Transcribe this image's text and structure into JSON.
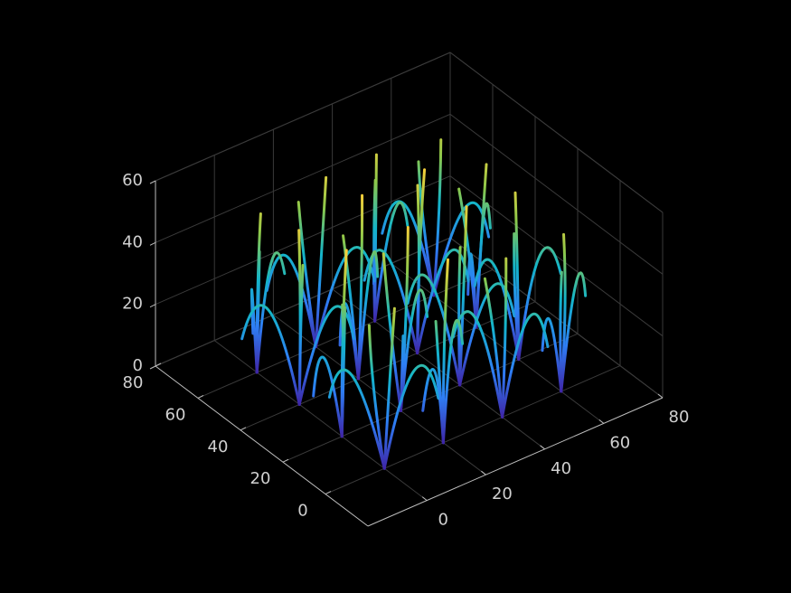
{
  "chart_data": {
    "type": "line3d",
    "xlim": [
      -20,
      80
    ],
    "ylim": [
      -20,
      80
    ],
    "zlim": [
      0,
      60
    ],
    "xticks": [
      0,
      20,
      40,
      60,
      80
    ],
    "yticks": [
      0,
      20,
      40,
      60,
      80
    ],
    "zticks": [
      0,
      20,
      40,
      60
    ],
    "grid": true,
    "colormap": [
      "#3e26a8",
      "#2e7ff5",
      "#14b5c9",
      "#8cc84a",
      "#f9cf3a"
    ],
    "series": [
      {
        "x": [
          0,
          1,
          2
        ],
        "y": [
          0,
          -1,
          -2
        ],
        "z": [
          0,
          27,
          52
        ]
      },
      {
        "x": [
          0,
          -2,
          -3
        ],
        "y": [
          0,
          2,
          3
        ],
        "z": [
          0,
          24,
          46
        ]
      },
      {
        "x": [
          0,
          8,
          14
        ],
        "y": [
          0,
          -3,
          -6
        ],
        "z": [
          0,
          30,
          20
        ]
      },
      {
        "x": [
          0,
          -6,
          -10
        ],
        "y": [
          0,
          7,
          12
        ],
        "z": [
          0,
          29,
          21
        ]
      },
      {
        "x": [
          20,
          21,
          23
        ],
        "y": [
          0,
          1,
          2
        ],
        "z": [
          0,
          29,
          57
        ]
      },
      {
        "x": [
          20,
          18,
          16
        ],
        "y": [
          0,
          -1,
          -2
        ],
        "z": [
          0,
          22,
          42
        ]
      },
      {
        "x": [
          20,
          27,
          33
        ],
        "y": [
          0,
          5,
          9
        ],
        "z": [
          0,
          31,
          22
        ]
      },
      {
        "x": [
          20,
          14,
          8
        ],
        "y": [
          0,
          -4,
          -7
        ],
        "z": [
          0,
          28,
          19
        ]
      },
      {
        "x": [
          40,
          41,
          42
        ],
        "y": [
          0,
          0,
          1
        ],
        "z": [
          0,
          26,
          50
        ]
      },
      {
        "x": [
          40,
          39,
          37
        ],
        "y": [
          0,
          2,
          4
        ],
        "z": [
          0,
          23,
          44
        ]
      },
      {
        "x": [
          40,
          48,
          54
        ],
        "y": [
          0,
          -1,
          -2
        ],
        "z": [
          0,
          29,
          18
        ]
      },
      {
        "x": [
          40,
          36,
          32
        ],
        "y": [
          0,
          7,
          12
        ],
        "z": [
          0,
          30,
          23
        ]
      },
      {
        "x": [
          60,
          62,
          63
        ],
        "y": [
          0,
          1,
          3
        ],
        "z": [
          0,
          25,
          48
        ]
      },
      {
        "x": [
          60,
          59,
          58
        ],
        "y": [
          0,
          -1,
          -3
        ],
        "z": [
          0,
          22,
          41
        ]
      },
      {
        "x": [
          60,
          68,
          74
        ],
        "y": [
          0,
          4,
          8
        ],
        "z": [
          0,
          30,
          21
        ]
      },
      {
        "x": [
          60,
          54,
          50
        ],
        "y": [
          0,
          -3,
          -5
        ],
        "z": [
          0,
          27,
          20
        ]
      },
      {
        "x": [
          0,
          1,
          3
        ],
        "y": [
          20,
          21,
          22
        ],
        "z": [
          0,
          30,
          58
        ]
      },
      {
        "x": [
          0,
          -1,
          -2
        ],
        "y": [
          20,
          18,
          17
        ],
        "z": [
          0,
          24,
          45
        ]
      },
      {
        "x": [
          0,
          6,
          10
        ],
        "y": [
          20,
          27,
          33
        ],
        "z": [
          0,
          32,
          24
        ]
      },
      {
        "x": [
          0,
          -8,
          -14
        ],
        "y": [
          20,
          17,
          14
        ],
        "z": [
          0,
          30,
          22
        ]
      },
      {
        "x": [
          20,
          21,
          21
        ],
        "y": [
          20,
          19,
          18
        ],
        "z": [
          0,
          31,
          60
        ]
      },
      {
        "x": [
          20,
          18,
          17
        ],
        "y": [
          20,
          22,
          24
        ],
        "z": [
          0,
          26,
          50
        ]
      },
      {
        "x": [
          20,
          28,
          34
        ],
        "y": [
          20,
          24,
          27
        ],
        "z": [
          0,
          31,
          21
        ]
      },
      {
        "x": [
          20,
          15,
          11
        ],
        "y": [
          20,
          12,
          7
        ],
        "z": [
          0,
          30,
          22
        ]
      },
      {
        "x": [
          40,
          42,
          43
        ],
        "y": [
          20,
          21,
          21
        ],
        "z": [
          0,
          29,
          56
        ]
      },
      {
        "x": [
          40,
          39,
          38
        ],
        "y": [
          20,
          19,
          17
        ],
        "z": [
          0,
          25,
          47
        ]
      },
      {
        "x": [
          40,
          47,
          52
        ],
        "y": [
          20,
          15,
          11
        ],
        "z": [
          0,
          31,
          22
        ]
      },
      {
        "x": [
          40,
          35,
          31
        ],
        "y": [
          20,
          27,
          32
        ],
        "z": [
          0,
          32,
          24
        ]
      },
      {
        "x": [
          60,
          61,
          61
        ],
        "y": [
          20,
          22,
          23
        ],
        "z": [
          0,
          27,
          52
        ]
      },
      {
        "x": [
          60,
          58,
          57
        ],
        "y": [
          20,
          19,
          18
        ],
        "z": [
          0,
          23,
          43
        ]
      },
      {
        "x": [
          60,
          68,
          75
        ],
        "y": [
          20,
          21,
          21
        ],
        "z": [
          0,
          30,
          21
        ]
      },
      {
        "x": [
          60,
          56,
          53
        ],
        "y": [
          20,
          26,
          31
        ],
        "z": [
          0,
          29,
          21
        ]
      },
      {
        "x": [
          0,
          1,
          2
        ],
        "y": [
          40,
          41,
          43
        ],
        "z": [
          0,
          28,
          54
        ]
      },
      {
        "x": [
          0,
          -1,
          -1
        ],
        "y": [
          40,
          38,
          37
        ],
        "z": [
          0,
          25,
          47
        ]
      },
      {
        "x": [
          0,
          -7,
          -13
        ],
        "y": [
          40,
          45,
          49
        ],
        "z": [
          0,
          31,
          22
        ]
      },
      {
        "x": [
          0,
          7,
          12
        ],
        "y": [
          40,
          35,
          31
        ],
        "z": [
          0,
          30,
          21
        ]
      },
      {
        "x": [
          20,
          21,
          22
        ],
        "y": [
          40,
          40,
          41
        ],
        "z": [
          0,
          30,
          58
        ]
      },
      {
        "x": [
          20,
          19,
          17
        ],
        "y": [
          40,
          42,
          43
        ],
        "z": [
          0,
          24,
          46
        ]
      },
      {
        "x": [
          20,
          28,
          33
        ],
        "y": [
          40,
          45,
          49
        ],
        "z": [
          0,
          32,
          23
        ]
      },
      {
        "x": [
          20,
          13,
          8
        ],
        "y": [
          40,
          36,
          32
        ],
        "z": [
          0,
          29,
          20
        ]
      },
      {
        "x": [
          40,
          40,
          41
        ],
        "y": [
          40,
          39,
          38
        ],
        "z": [
          0,
          31,
          60
        ]
      },
      {
        "x": [
          40,
          42,
          43
        ],
        "y": [
          40,
          42,
          44
        ],
        "z": [
          0,
          27,
          51
        ]
      },
      {
        "x": [
          40,
          34,
          30
        ],
        "y": [
          40,
          46,
          51
        ],
        "z": [
          0,
          31,
          22
        ]
      },
      {
        "x": [
          40,
          48,
          53
        ],
        "y": [
          40,
          37,
          34
        ],
        "z": [
          0,
          30,
          21
        ]
      },
      {
        "x": [
          60,
          61,
          62
        ],
        "y": [
          40,
          39,
          38
        ],
        "z": [
          0,
          28,
          53
        ]
      },
      {
        "x": [
          60,
          59,
          57
        ],
        "y": [
          40,
          42,
          44
        ],
        "z": [
          0,
          23,
          44
        ]
      },
      {
        "x": [
          60,
          67,
          72
        ],
        "y": [
          40,
          46,
          50
        ],
        "z": [
          0,
          31,
          22
        ]
      },
      {
        "x": [
          60,
          54,
          50
        ],
        "y": [
          40,
          34,
          30
        ],
        "z": [
          0,
          29,
          20
        ]
      },
      {
        "x": [
          0,
          1,
          2
        ],
        "y": [
          60,
          61,
          61
        ],
        "z": [
          0,
          26,
          50
        ]
      },
      {
        "x": [
          0,
          -1,
          -2
        ],
        "y": [
          60,
          58,
          56
        ],
        "z": [
          0,
          22,
          42
        ]
      },
      {
        "x": [
          0,
          -6,
          -10
        ],
        "y": [
          60,
          54,
          48
        ],
        "z": [
          0,
          32,
          23
        ]
      },
      {
        "x": [
          0,
          7,
          13
        ],
        "y": [
          60,
          63,
          65
        ],
        "z": [
          0,
          31,
          24
        ]
      },
      {
        "x": [
          20,
          21,
          22
        ],
        "y": [
          60,
          59,
          58
        ],
        "z": [
          0,
          28,
          55
        ]
      },
      {
        "x": [
          20,
          18,
          17
        ],
        "y": [
          60,
          62,
          64
        ],
        "z": [
          0,
          24,
          46
        ]
      },
      {
        "x": [
          20,
          13,
          7
        ],
        "y": [
          60,
          63,
          65
        ],
        "z": [
          0,
          30,
          21
        ]
      },
      {
        "x": [
          20,
          27,
          32
        ],
        "y": [
          60,
          54,
          49
        ],
        "z": [
          0,
          31,
          22
        ]
      },
      {
        "x": [
          40,
          41,
          42
        ],
        "y": [
          60,
          61,
          62
        ],
        "z": [
          0,
          27,
          52
        ]
      },
      {
        "x": [
          40,
          39,
          38
        ],
        "y": [
          60,
          59,
          57
        ],
        "z": [
          0,
          25,
          48
        ]
      },
      {
        "x": [
          40,
          48,
          54
        ],
        "y": [
          60,
          62,
          64
        ],
        "z": [
          0,
          31,
          23
        ]
      },
      {
        "x": [
          40,
          35,
          31
        ],
        "y": [
          60,
          53,
          48
        ],
        "z": [
          0,
          30,
          22
        ]
      },
      {
        "x": [
          60,
          61,
          61
        ],
        "y": [
          60,
          59,
          58
        ],
        "z": [
          0,
          26,
          51
        ]
      },
      {
        "x": [
          60,
          58,
          57
        ],
        "y": [
          60,
          62,
          63
        ],
        "z": [
          0,
          23,
          43
        ]
      },
      {
        "x": [
          60,
          66,
          70
        ],
        "y": [
          60,
          53,
          48
        ],
        "z": [
          0,
          30,
          21
        ]
      },
      {
        "x": [
          60,
          54,
          49
        ],
        "y": [
          60,
          65,
          69
        ],
        "z": [
          0,
          29,
          20
        ]
      }
    ]
  }
}
